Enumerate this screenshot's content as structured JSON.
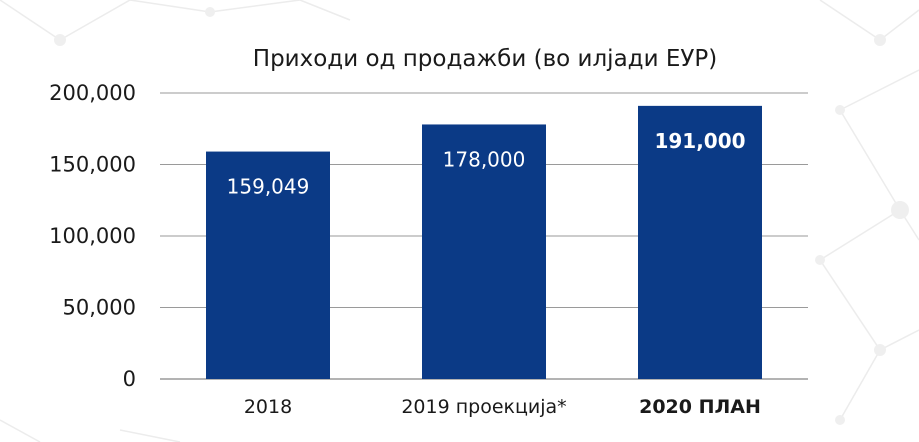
{
  "chart_data": {
    "type": "bar",
    "title": "Приходи од продажби (во илјади ЕУР)",
    "xlabel": "",
    "ylabel": "",
    "categories": [
      "2018",
      "2019 проекција*",
      "2020 ПЛАН"
    ],
    "values": [
      159049,
      178000,
      191000
    ],
    "value_labels": [
      "159,049",
      "178,000",
      "191,000"
    ],
    "highlighted": [
      false,
      false,
      true
    ],
    "ylim": [
      0,
      200000
    ],
    "yticks": [
      0,
      50000,
      100000,
      150000,
      200000
    ],
    "ytick_labels": [
      "0",
      "50,000",
      "100,000",
      "150,000",
      "200,000"
    ],
    "grid": true,
    "legend": "none",
    "colors": {
      "bar": "#0b3a86",
      "gridline": "#9a9a9a",
      "text": "#1a1a1a",
      "data_label": "#ffffff",
      "background_network": "#e9e9e9"
    }
  }
}
